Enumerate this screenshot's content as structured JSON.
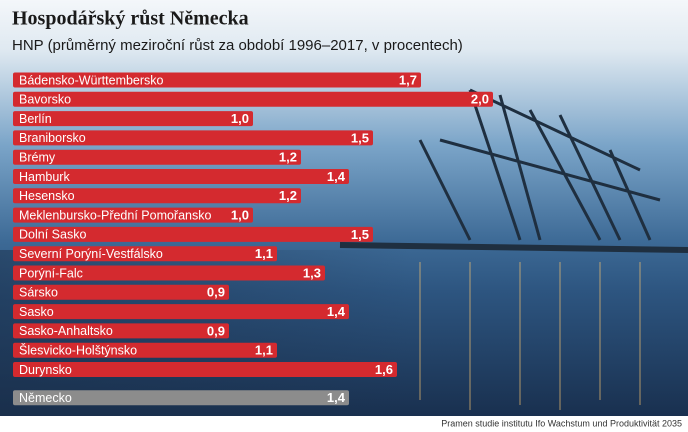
{
  "chart_data": {
    "type": "bar",
    "orientation": "horizontal",
    "title": "Hospodářský růst Německa",
    "subtitle": "HNP (průměrný meziroční růst za období 1996–2017, v procentech)",
    "source": "Pramen studie institutu Ifo Wachstum und Produktivität 2035",
    "categories": [
      "Bádensko-Württembersko",
      "Bavorsko",
      "Berlín",
      "Braniborsko",
      "Brémy",
      "Hamburk",
      "Hesensko",
      "Meklenbursko-Přední Pomořansko",
      "Dolní Sasko",
      "Severní Porýní-Vestfálsko",
      "Porýní-Falc",
      "Sársko",
      "Sasko",
      "Sasko-Anhaltsko",
      "Šlesvicko-Holštýnsko",
      "Durynsko",
      "Německo"
    ],
    "values": [
      1.7,
      2.0,
      1.0,
      1.5,
      1.2,
      1.4,
      1.2,
      1.0,
      1.5,
      1.1,
      1.3,
      0.9,
      1.4,
      0.9,
      1.1,
      1.6,
      1.4
    ],
    "value_labels": [
      "1,7",
      "2,0",
      "1,0",
      "1,5",
      "1,2",
      "1,4",
      "1,2",
      "1,0",
      "1,5",
      "1,1",
      "1,3",
      "0,9",
      "1,4",
      "0,9",
      "1,1",
      "1,6",
      "1,4"
    ],
    "colors": [
      "#d42a2f",
      "#d42a2f",
      "#d42a2f",
      "#d42a2f",
      "#d42a2f",
      "#d42a2f",
      "#d42a2f",
      "#d42a2f",
      "#d42a2f",
      "#d42a2f",
      "#d42a2f",
      "#d42a2f",
      "#d42a2f",
      "#d42a2f",
      "#d42a2f",
      "#d42a2f",
      "#8c8c8c"
    ]
  }
}
